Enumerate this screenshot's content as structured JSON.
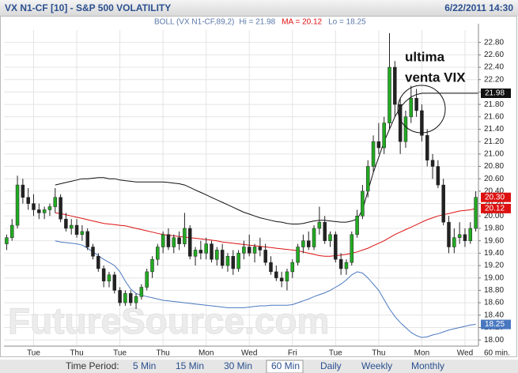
{
  "chart_data": {
    "type": "candlestick",
    "title": "VX N1-CF [10] - S&P 500 VOLATILITY",
    "datetime": "6/22/2011 14:30",
    "indicator": "BOLL (VX N1-CF,89,2)",
    "categories": [
      null,
      null,
      null,
      null,
      null,
      "Tue",
      null,
      null,
      null,
      null,
      null,
      null,
      null,
      "Thu",
      null,
      null,
      null,
      null,
      null,
      null,
      null,
      "Tue",
      null,
      null,
      null,
      null,
      null,
      null,
      null,
      "Thu",
      null,
      null,
      null,
      null,
      null,
      null,
      null,
      "Mon",
      null,
      null,
      null,
      null,
      null,
      null,
      null,
      "Wed",
      null,
      null,
      null,
      null,
      null,
      null,
      null,
      "Fri",
      null,
      null,
      null,
      null,
      null,
      null,
      null,
      "Tue",
      null,
      null,
      null,
      null,
      null,
      null,
      null,
      "Thu",
      null,
      null,
      null,
      null,
      null,
      null,
      null,
      "Mon",
      null,
      null,
      null,
      null,
      null,
      null,
      null,
      "Wed",
      null,
      null
    ],
    "x_unit_label": "60 min.",
    "open": [
      19.55,
      19.65,
      19.85,
      20.5,
      20.3,
      20.2,
      20.1,
      20.05,
      20.1,
      20.15,
      20.3,
      19.95,
      19.8,
      19.85,
      19.7,
      19.75,
      19.5,
      19.35,
      19.15,
      18.95,
      19.05,
      18.8,
      18.6,
      18.75,
      18.6,
      18.7,
      18.85,
      19.1,
      19.3,
      19.5,
      19.7,
      19.5,
      19.65,
      19.55,
      19.8,
      19.35,
      19.45,
      19.4,
      19.55,
      19.3,
      19.45,
      19.2,
      19.35,
      19.15,
      19.4,
      19.5,
      19.4,
      19.5,
      19.45,
      19.25,
      19.1,
      19.0,
      18.95,
      19.1,
      19.25,
      19.5,
      19.6,
      19.5,
      19.8,
      19.9,
      19.6,
      19.7,
      19.3,
      19.15,
      19.25,
      19.7,
      20.0,
      20.4,
      20.8,
      21.2,
      21.1,
      21.5,
      22.4,
      21.8,
      21.2,
      21.6,
      21.9,
      21.7,
      21.3,
      20.9,
      20.8,
      20.5,
      19.9,
      19.5,
      19.65,
      19.7,
      19.6,
      19.8
    ],
    "high": [
      19.7,
      19.95,
      20.65,
      20.6,
      20.45,
      20.35,
      20.2,
      20.15,
      20.2,
      20.45,
      20.35,
      20.05,
      19.95,
      19.95,
      19.85,
      19.8,
      19.55,
      19.4,
      19.2,
      19.1,
      19.1,
      18.85,
      18.8,
      18.8,
      18.75,
      18.9,
      19.15,
      19.35,
      19.55,
      19.75,
      19.8,
      19.7,
      19.75,
      20.05,
      19.85,
      19.5,
      19.6,
      19.65,
      19.6,
      19.5,
      19.55,
      19.4,
      19.45,
      19.45,
      19.6,
      19.7,
      19.55,
      19.65,
      19.55,
      19.35,
      19.2,
      19.1,
      19.15,
      19.3,
      19.55,
      19.7,
      19.75,
      19.85,
      20.15,
      20.0,
      19.75,
      19.75,
      19.4,
      19.3,
      19.75,
      20.1,
      20.5,
      20.9,
      21.3,
      21.5,
      21.6,
      22.95,
      22.5,
      21.9,
      21.7,
      22.1,
      22.05,
      21.8,
      21.4,
      21.0,
      20.9,
      20.6,
      20.0,
      19.8,
      19.9,
      19.8,
      19.9,
      20.4
    ],
    "low": [
      19.45,
      19.6,
      19.8,
      20.2,
      20.1,
      20.0,
      19.95,
      19.95,
      20.0,
      20.05,
      19.9,
      19.75,
      19.7,
      19.65,
      19.6,
      19.45,
      19.3,
      19.1,
      18.85,
      18.85,
      18.75,
      18.55,
      18.55,
      18.55,
      18.5,
      18.65,
      18.8,
      19.0,
      19.2,
      19.4,
      19.45,
      19.4,
      19.45,
      19.5,
      19.3,
      19.2,
      19.3,
      19.3,
      19.25,
      19.2,
      19.15,
      19.1,
      19.05,
      19.1,
      19.3,
      19.35,
      19.25,
      19.35,
      19.2,
      19.05,
      18.95,
      18.85,
      18.8,
      19.0,
      19.2,
      19.4,
      19.45,
      19.45,
      19.7,
      19.55,
      19.5,
      19.25,
      19.05,
      19.05,
      19.2,
      19.65,
      19.95,
      20.3,
      20.7,
      21.0,
      21.0,
      21.4,
      21.6,
      21.0,
      21.1,
      21.5,
      21.6,
      21.2,
      20.8,
      20.6,
      20.45,
      19.85,
      19.4,
      19.4,
      19.55,
      19.5,
      19.55,
      19.75
    ],
    "close": [
      19.65,
      19.85,
      20.5,
      20.3,
      20.2,
      20.1,
      20.05,
      20.1,
      20.15,
      20.3,
      19.95,
      19.8,
      19.85,
      19.7,
      19.75,
      19.5,
      19.35,
      19.15,
      18.95,
      19.05,
      18.8,
      18.6,
      18.75,
      18.6,
      18.7,
      18.85,
      19.1,
      19.3,
      19.5,
      19.7,
      19.5,
      19.65,
      19.55,
      19.8,
      19.35,
      19.45,
      19.4,
      19.55,
      19.3,
      19.45,
      19.2,
      19.35,
      19.15,
      19.4,
      19.5,
      19.4,
      19.5,
      19.45,
      19.25,
      19.1,
      19.0,
      18.95,
      19.1,
      19.25,
      19.5,
      19.6,
      19.5,
      19.8,
      19.9,
      19.6,
      19.7,
      19.3,
      19.15,
      19.25,
      19.7,
      20.0,
      20.4,
      20.8,
      21.2,
      21.1,
      21.5,
      22.4,
      21.8,
      21.2,
      21.6,
      21.9,
      21.7,
      21.3,
      20.9,
      20.8,
      20.5,
      19.9,
      19.5,
      19.65,
      19.7,
      19.6,
      19.8,
      20.3
    ],
    "up_color": "#22aa22",
    "down_color": "#222222",
    "series": [
      {
        "name": "Hi = 21.98",
        "color": "#111111",
        "legend_color": "#5a78a8",
        "values": [
          null,
          null,
          null,
          null,
          null,
          null,
          null,
          null,
          null,
          20.5,
          20.52,
          20.54,
          20.56,
          20.58,
          20.6,
          20.6,
          20.61,
          20.62,
          20.62,
          20.6,
          20.6,
          20.58,
          20.57,
          20.56,
          20.55,
          20.55,
          20.55,
          20.55,
          20.55,
          20.55,
          20.54,
          20.53,
          20.52,
          20.5,
          20.46,
          20.42,
          20.38,
          20.34,
          20.3,
          20.26,
          20.22,
          20.18,
          20.14,
          20.1,
          20.06,
          20.03,
          20.0,
          19.97,
          19.95,
          19.93,
          19.91,
          19.9,
          19.88,
          19.87,
          19.87,
          19.88,
          19.9,
          19.92,
          19.93,
          19.93,
          19.92,
          19.91,
          19.9,
          19.9,
          19.92,
          19.95,
          20.1,
          20.4,
          20.7,
          20.95,
          21.2,
          21.4,
          21.6,
          21.75,
          21.85,
          21.92,
          21.96,
          21.98,
          21.98,
          21.98,
          21.98,
          21.98,
          21.98,
          21.98,
          21.98,
          21.98,
          21.98,
          21.98
        ]
      },
      {
        "name": "MA = 20.12",
        "color": "#dd1111",
        "legend_color": "#dd1111",
        "values": [
          null,
          null,
          null,
          null,
          null,
          null,
          null,
          null,
          null,
          20.05,
          20.04,
          20.02,
          20.0,
          19.98,
          19.96,
          19.94,
          19.92,
          19.9,
          19.88,
          19.87,
          19.86,
          19.85,
          19.84,
          19.82,
          19.8,
          19.78,
          19.76,
          19.74,
          19.72,
          19.7,
          19.69,
          19.68,
          19.67,
          19.66,
          19.65,
          19.64,
          19.63,
          19.62,
          19.61,
          19.6,
          19.58,
          19.57,
          19.56,
          19.55,
          19.54,
          19.53,
          19.52,
          19.51,
          19.5,
          19.49,
          19.48,
          19.47,
          19.46,
          19.45,
          19.44,
          19.42,
          19.4,
          19.38,
          19.36,
          19.35,
          19.35,
          19.36,
          19.37,
          19.38,
          19.4,
          19.42,
          19.45,
          19.48,
          19.52,
          19.56,
          19.6,
          19.65,
          19.7,
          19.74,
          19.78,
          19.82,
          19.86,
          19.9,
          19.94,
          19.97,
          20.0,
          20.02,
          20.04,
          20.06,
          20.08,
          20.09,
          20.1,
          20.12
        ]
      },
      {
        "name": "Lo = 18.25",
        "color": "#4a78c0",
        "legend_color": "#5a78a8",
        "values": [
          null,
          null,
          null,
          null,
          null,
          null,
          null,
          null,
          null,
          19.6,
          19.58,
          19.57,
          19.56,
          19.55,
          19.53,
          19.48,
          19.42,
          19.36,
          19.3,
          19.25,
          19.2,
          19.1,
          18.95,
          18.82,
          18.75,
          18.72,
          18.7,
          18.68,
          18.66,
          18.64,
          18.63,
          18.62,
          18.61,
          18.6,
          18.59,
          18.58,
          18.57,
          18.56,
          18.55,
          18.54,
          18.53,
          18.52,
          18.52,
          18.52,
          18.52,
          18.53,
          18.54,
          18.55,
          18.55,
          18.56,
          18.56,
          18.56,
          18.56,
          18.57,
          18.6,
          18.63,
          18.66,
          18.7,
          18.73,
          18.76,
          18.8,
          18.85,
          18.9,
          18.97,
          19.05,
          19.1,
          19.08,
          19.0,
          18.9,
          18.8,
          18.65,
          18.5,
          18.38,
          18.28,
          18.2,
          18.12,
          18.07,
          18.04,
          18.05,
          18.08,
          18.1,
          18.13,
          18.16,
          18.18,
          18.2,
          18.22,
          18.24,
          18.25
        ]
      }
    ],
    "price_tags": [
      {
        "value": 21.98,
        "label": "21.98",
        "color": "#111111"
      },
      {
        "value": 20.3,
        "label": "20.30",
        "color": "#dd1111"
      },
      {
        "value": 20.12,
        "label": "20.12",
        "color": "#dd1111"
      },
      {
        "value": 18.25,
        "label": "18.25",
        "color": "#4a78c0"
      }
    ],
    "ylim": [
      17.9,
      23.0
    ],
    "yticks": [
      {
        "value": 18,
        "label": "18.00"
      },
      {
        "value": 18.2,
        "label": "18.20"
      },
      {
        "value": 18.4,
        "label": "18.40"
      },
      {
        "value": 18.6,
        "label": "18.60"
      },
      {
        "value": 18.8,
        "label": "18.80"
      },
      {
        "value": 19,
        "label": "19.00"
      },
      {
        "value": 19.2,
        "label": "19.20"
      },
      {
        "value": 19.4,
        "label": "19.40"
      },
      {
        "value": 19.6,
        "label": "19.60"
      },
      {
        "value": 19.8,
        "label": "19.80"
      },
      {
        "value": 20,
        "label": "20.00"
      },
      {
        "value": 20.2,
        "label": "20.20"
      },
      {
        "value": 20.4,
        "label": "20.40"
      },
      {
        "value": 20.6,
        "label": "20.60"
      },
      {
        "value": 20.8,
        "label": "20.80"
      },
      {
        "value": 21,
        "label": "21.00"
      },
      {
        "value": 21.2,
        "label": "21.20"
      },
      {
        "value": 21.4,
        "label": "21.40"
      },
      {
        "value": 21.6,
        "label": "21.60"
      },
      {
        "value": 21.8,
        "label": "21.80"
      },
      {
        "value": 22,
        "label": "22.00"
      },
      {
        "value": 22.2,
        "label": "22.20"
      },
      {
        "value": 22.4,
        "label": "22.40"
      },
      {
        "value": 22.6,
        "label": "22.60"
      },
      {
        "value": 22.8,
        "label": "22.80"
      }
    ],
    "grid": true,
    "annotation": [
      "ultima",
      "venta VIX"
    ],
    "watermark": "FutureSource.com",
    "period_label": "Time Period:",
    "periods": [
      "5 Min",
      "15 Min",
      "30 Min",
      "60 Min",
      "Daily",
      "Weekly",
      "Monthly"
    ],
    "selected_period": 3
  }
}
